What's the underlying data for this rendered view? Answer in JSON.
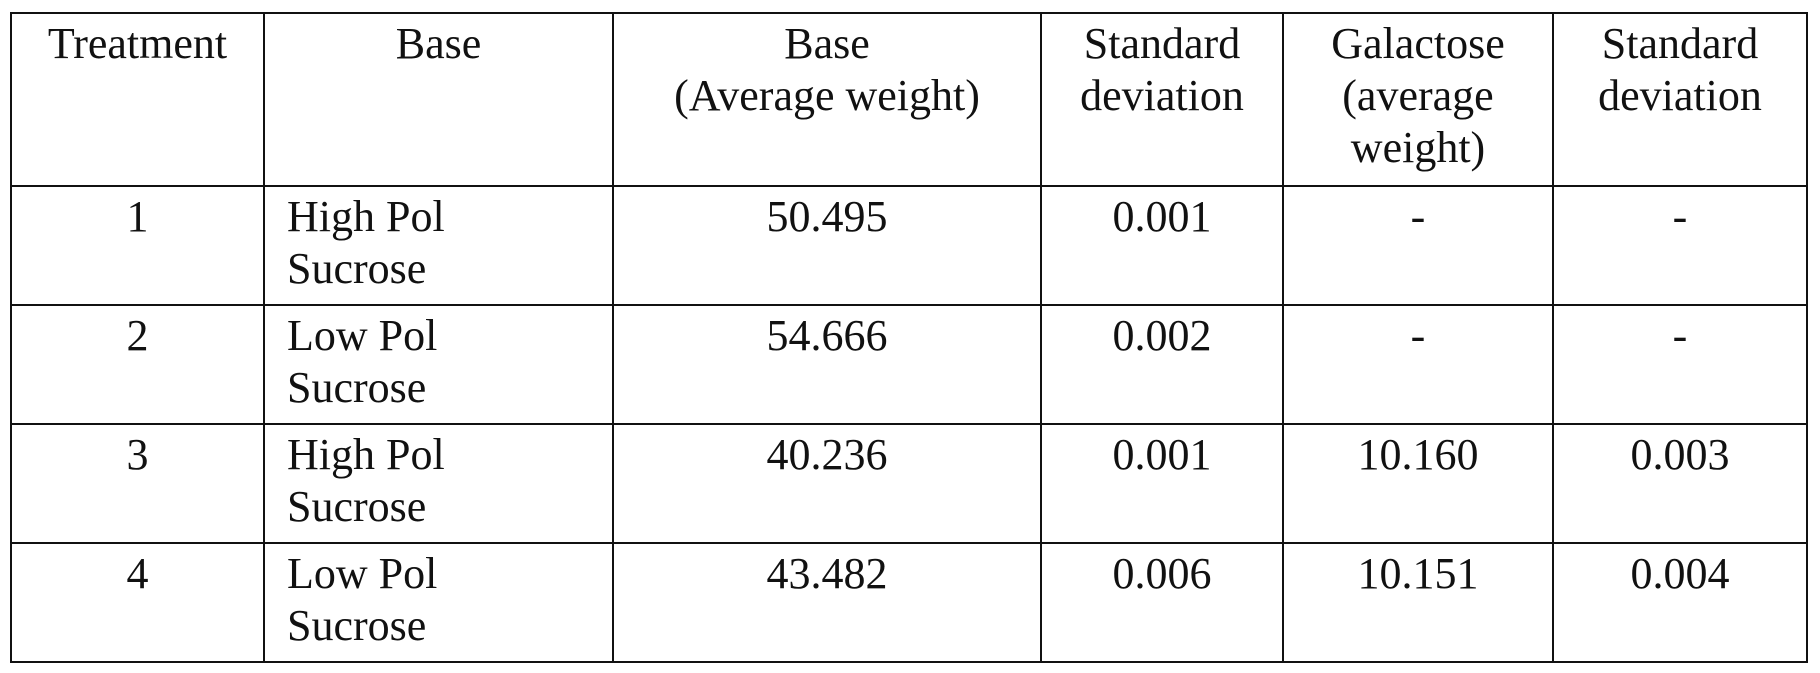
{
  "table": {
    "headers": [
      [
        "Treatment"
      ],
      [
        "Base"
      ],
      [
        "Base",
        "(Average weight)"
      ],
      [
        "Standard",
        "deviation"
      ],
      [
        "Galactose",
        "(average",
        "weight)"
      ],
      [
        "Standard",
        "deviation"
      ]
    ],
    "rows": [
      {
        "treatment": "1",
        "base": [
          "High Pol",
          "Sucrose"
        ],
        "base_avg": "50.495",
        "base_sd": "0.001",
        "gal_avg": "-",
        "gal_sd": "-"
      },
      {
        "treatment": "2",
        "base": [
          "Low Pol",
          "Sucrose"
        ],
        "base_avg": "54.666",
        "base_sd": "0.002",
        "gal_avg": "-",
        "gal_sd": "-"
      },
      {
        "treatment": "3",
        "base": [
          "High Pol",
          "Sucrose"
        ],
        "base_avg": "40.236",
        "base_sd": "0.001",
        "gal_avg": "10.160",
        "gal_sd": "0.003"
      },
      {
        "treatment": "4",
        "base": [
          "Low Pol",
          "Sucrose"
        ],
        "base_avg": "43.482",
        "base_sd": "0.006",
        "gal_avg": "10.151",
        "gal_sd": "0.004"
      }
    ]
  }
}
